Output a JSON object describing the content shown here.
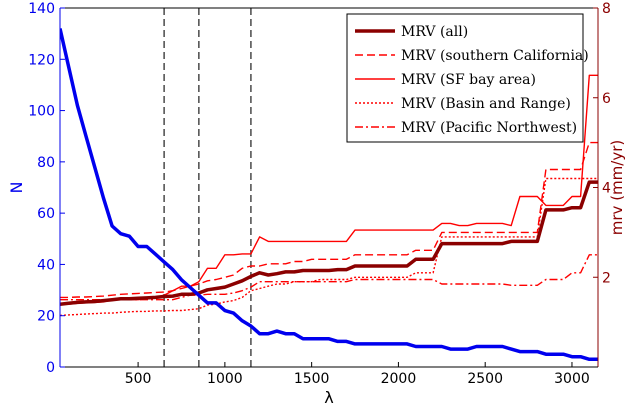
{
  "chart_data": {
    "type": "line",
    "xlabel": "λ",
    "ylabel_left": "N",
    "ylabel_right": "mrv (mm/yr)",
    "xlim": [
      50,
      3150
    ],
    "ylim_left": [
      0,
      140
    ],
    "ylim_right": [
      0,
      8
    ],
    "xticks": [
      500,
      1000,
      1500,
      2000,
      2500,
      3000
    ],
    "yticks_left": [
      0,
      20,
      40,
      60,
      80,
      100,
      120,
      140
    ],
    "yticks_right": [
      2,
      4,
      6,
      8
    ],
    "vlines": [
      650,
      850,
      1150
    ],
    "legend_position": "top-right",
    "colors": {
      "left_axis": "#0000ee",
      "right_axis": "#8b0000",
      "n_line": "#0000ee",
      "mrv_all": "#8b0000",
      "mrv_regions": "#ff0000",
      "vlines": "#555555"
    },
    "series": [
      {
        "name": "N",
        "axis": "left",
        "x": [
          50,
          100,
          150,
          200,
          250,
          300,
          350,
          400,
          450,
          500,
          550,
          600,
          650,
          700,
          750,
          800,
          850,
          900,
          950,
          1000,
          1050,
          1100,
          1150,
          1200,
          1250,
          1300,
          1350,
          1400,
          1450,
          1500,
          1550,
          1600,
          1650,
          1700,
          1750,
          1800,
          1850,
          1900,
          1950,
          2000,
          2050,
          2100,
          2150,
          2200,
          2250,
          2300,
          2350,
          2400,
          2450,
          2500,
          2550,
          2600,
          2650,
          2700,
          2750,
          2800,
          2850,
          2900,
          2950,
          3000,
          3050,
          3100,
          3150
        ],
        "values": [
          132,
          117,
          102,
          90,
          78,
          66,
          55,
          52,
          51,
          47,
          47,
          44,
          41,
          38,
          34,
          31,
          28,
          25,
          25,
          22,
          21,
          18,
          16,
          13,
          13,
          14,
          13,
          13,
          11,
          11,
          11,
          11,
          10,
          10,
          9,
          9,
          9,
          9,
          9,
          9,
          9,
          8,
          8,
          8,
          8,
          7,
          7,
          7,
          8,
          8,
          8,
          8,
          7,
          6,
          6,
          6,
          5,
          5,
          5,
          4,
          4,
          3,
          3
        ]
      },
      {
        "name": "MRV (all)",
        "axis": "right",
        "x": [
          50,
          100,
          150,
          200,
          250,
          300,
          350,
          400,
          450,
          500,
          550,
          600,
          650,
          700,
          750,
          800,
          850,
          900,
          950,
          1000,
          1050,
          1100,
          1150,
          1200,
          1250,
          1300,
          1350,
          1400,
          1450,
          1500,
          1550,
          1600,
          1650,
          1700,
          1750,
          1800,
          1850,
          1900,
          1950,
          2000,
          2050,
          2100,
          2150,
          2200,
          2250,
          2300,
          2350,
          2400,
          2450,
          2500,
          2550,
          2600,
          2650,
          2700,
          2750,
          2800,
          2850,
          2900,
          2950,
          3000,
          3050,
          3100,
          3150
        ],
        "values": [
          1.4,
          1.42,
          1.44,
          1.45,
          1.46,
          1.48,
          1.5,
          1.52,
          1.52,
          1.53,
          1.54,
          1.55,
          1.57,
          1.58,
          1.62,
          1.62,
          1.65,
          1.72,
          1.75,
          1.78,
          1.85,
          1.92,
          2.02,
          2.1,
          2.05,
          2.08,
          2.12,
          2.12,
          2.15,
          2.15,
          2.15,
          2.15,
          2.17,
          2.17,
          2.25,
          2.25,
          2.25,
          2.25,
          2.25,
          2.25,
          2.25,
          2.4,
          2.4,
          2.4,
          2.75,
          2.75,
          2.75,
          2.75,
          2.75,
          2.75,
          2.75,
          2.75,
          2.8,
          2.8,
          2.8,
          2.8,
          3.5,
          3.5,
          3.5,
          3.55,
          3.55,
          4.12,
          4.12
        ]
      },
      {
        "name": "MRV (southern California)",
        "axis": "right",
        "x": [
          50,
          100,
          150,
          200,
          250,
          300,
          350,
          400,
          450,
          500,
          550,
          600,
          650,
          700,
          750,
          800,
          850,
          900,
          950,
          1000,
          1050,
          1100,
          1150,
          1200,
          1250,
          1300,
          1350,
          1400,
          1450,
          1500,
          1550,
          1600,
          1650,
          1700,
          1750,
          1800,
          1850,
          1900,
          1950,
          2000,
          2050,
          2100,
          2150,
          2200,
          2250,
          2300,
          2350,
          2400,
          2450,
          2500,
          2550,
          2600,
          2650,
          2700,
          2750,
          2800,
          2850,
          2900,
          2950,
          3000,
          3050,
          3100,
          3150
        ],
        "values": [
          1.55,
          1.55,
          1.56,
          1.56,
          1.57,
          1.58,
          1.6,
          1.62,
          1.63,
          1.64,
          1.65,
          1.66,
          1.67,
          1.7,
          1.75,
          1.8,
          1.85,
          1.92,
          1.95,
          2.0,
          2.05,
          2.2,
          2.25,
          2.25,
          2.3,
          2.3,
          2.3,
          2.35,
          2.35,
          2.4,
          2.4,
          2.4,
          2.4,
          2.4,
          2.5,
          2.5,
          2.5,
          2.5,
          2.5,
          2.5,
          2.5,
          2.6,
          2.6,
          2.6,
          3.0,
          3.0,
          3.0,
          3.0,
          3.0,
          3.0,
          3.0,
          3.0,
          3.0,
          3.0,
          3.0,
          3.0,
          4.4,
          4.4,
          4.4,
          4.4,
          4.4,
          5.0,
          5.0
        ]
      },
      {
        "name": "MRV (SF bay area)",
        "axis": "right",
        "x": [
          50,
          100,
          150,
          200,
          250,
          300,
          350,
          400,
          450,
          500,
          550,
          600,
          650,
          700,
          750,
          800,
          850,
          900,
          950,
          1000,
          1050,
          1100,
          1150,
          1200,
          1250,
          1300,
          1350,
          1400,
          1450,
          1500,
          1550,
          1600,
          1650,
          1700,
          1750,
          1800,
          1850,
          1900,
          1950,
          2000,
          2050,
          2100,
          2150,
          2200,
          2250,
          2300,
          2350,
          2400,
          2450,
          2500,
          2550,
          2600,
          2650,
          2700,
          2750,
          2800,
          2850,
          2900,
          2950,
          3000,
          3050,
          3100,
          3150
        ],
        "values": [
          1.4,
          1.4,
          1.42,
          1.43,
          1.44,
          1.45,
          1.5,
          1.5,
          1.5,
          1.5,
          1.52,
          1.55,
          1.6,
          1.7,
          1.8,
          1.8,
          1.9,
          2.2,
          2.2,
          2.5,
          2.5,
          2.52,
          2.52,
          2.9,
          2.8,
          2.8,
          2.8,
          2.8,
          2.8,
          2.8,
          2.8,
          2.8,
          2.8,
          2.8,
          3.05,
          3.05,
          3.05,
          3.05,
          3.05,
          3.05,
          3.05,
          3.05,
          3.05,
          3.05,
          3.2,
          3.2,
          3.15,
          3.15,
          3.2,
          3.2,
          3.2,
          3.2,
          3.15,
          3.8,
          3.8,
          3.8,
          3.6,
          3.6,
          3.6,
          3.8,
          3.8,
          6.5,
          6.5
        ]
      },
      {
        "name": "MRV (Basin and Range)",
        "axis": "right",
        "x": [
          50,
          100,
          150,
          200,
          250,
          300,
          350,
          400,
          450,
          500,
          550,
          600,
          650,
          700,
          750,
          800,
          850,
          900,
          950,
          1000,
          1050,
          1100,
          1150,
          1200,
          1250,
          1300,
          1350,
          1400,
          1450,
          1500,
          1550,
          1600,
          1650,
          1700,
          1750,
          1800,
          1850,
          1900,
          1950,
          2000,
          2050,
          2100,
          2150,
          2200,
          2250,
          2300,
          2350,
          2400,
          2450,
          2500,
          2550,
          2600,
          2650,
          2700,
          2750,
          2800,
          2850,
          2900,
          2950,
          3000,
          3050,
          3100,
          3150
        ],
        "values": [
          1.15,
          1.16,
          1.17,
          1.18,
          1.19,
          1.2,
          1.2,
          1.22,
          1.23,
          1.24,
          1.24,
          1.25,
          1.25,
          1.26,
          1.26,
          1.28,
          1.3,
          1.38,
          1.4,
          1.45,
          1.48,
          1.55,
          1.7,
          1.75,
          1.8,
          1.85,
          1.85,
          1.9,
          1.9,
          1.9,
          1.95,
          1.95,
          1.95,
          1.95,
          2.0,
          2.0,
          2.0,
          2.0,
          2.0,
          2.0,
          2.0,
          2.1,
          2.1,
          2.1,
          2.9,
          2.9,
          2.9,
          2.9,
          2.9,
          2.9,
          2.9,
          2.9,
          2.9,
          2.9,
          2.9,
          2.9,
          4.2,
          4.2,
          4.2,
          4.2,
          4.2,
          4.2,
          4.2
        ]
      },
      {
        "name": "MRV (Pacific Northwest)",
        "axis": "right",
        "x": [
          50,
          100,
          150,
          200,
          250,
          300,
          350,
          400,
          450,
          500,
          550,
          600,
          650,
          700,
          750,
          800,
          850,
          900,
          950,
          1000,
          1050,
          1100,
          1150,
          1200,
          1250,
          1300,
          1350,
          1400,
          1450,
          1500,
          1550,
          1600,
          1650,
          1700,
          1750,
          1800,
          1850,
          1900,
          1950,
          2000,
          2050,
          2100,
          2150,
          2200,
          2250,
          2300,
          2350,
          2400,
          2450,
          2500,
          2550,
          2600,
          2650,
          2700,
          2750,
          2800,
          2850,
          2900,
          2950,
          3000,
          3050,
          3100,
          3150
        ],
        "values": [
          1.5,
          1.5,
          1.5,
          1.5,
          1.5,
          1.5,
          1.5,
          1.5,
          1.5,
          1.5,
          1.5,
          1.5,
          1.5,
          1.5,
          1.55,
          1.6,
          1.6,
          1.62,
          1.62,
          1.62,
          1.65,
          1.7,
          1.78,
          1.9,
          1.9,
          1.9,
          1.9,
          1.9,
          1.9,
          1.9,
          1.9,
          1.9,
          1.9,
          1.9,
          1.95,
          1.95,
          1.95,
          1.95,
          1.95,
          1.95,
          1.95,
          1.95,
          1.95,
          1.95,
          1.85,
          1.85,
          1.85,
          1.85,
          1.85,
          1.85,
          1.85,
          1.85,
          1.82,
          1.82,
          1.82,
          1.82,
          1.95,
          1.95,
          1.95,
          2.1,
          2.1,
          2.5,
          2.5
        ]
      }
    ],
    "legend": [
      {
        "label": "MRV (all)",
        "style": "thick"
      },
      {
        "label": "MRV (southern California)",
        "style": "dashed"
      },
      {
        "label": "MRV (SF bay area)",
        "style": "solid"
      },
      {
        "label": "MRV (Basin and Range)",
        "style": "dotted"
      },
      {
        "label": "MRV (Pacific Northwest)",
        "style": "dashdot"
      }
    ]
  }
}
